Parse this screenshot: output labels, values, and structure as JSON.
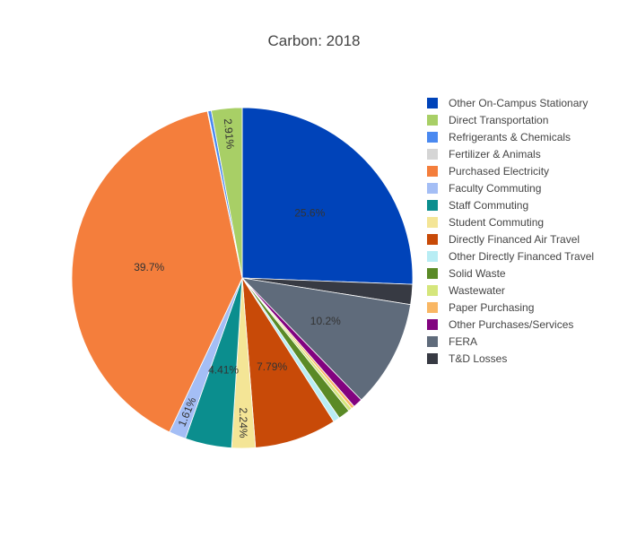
{
  "chart_data": {
    "type": "pie",
    "title": "Carbon: 2018",
    "direction": "clockwise",
    "legend_position": "right",
    "series": [
      {
        "name": "Other On-Campus Stationary",
        "value": 25.6,
        "label": "25.6%",
        "color": "#0043b9"
      },
      {
        "name": "T&D Losses",
        "value": 1.9,
        "label": "",
        "color": "#373a43"
      },
      {
        "name": "FERA",
        "value": 10.2,
        "label": "10.2%",
        "color": "#5f6b7b"
      },
      {
        "name": "Other Purchases/Services",
        "value": 0.9,
        "label": "",
        "color": "#82037f"
      },
      {
        "name": "Paper Purchasing",
        "value": 0.3,
        "label": "",
        "color": "#f9b764"
      },
      {
        "name": "Wastewater",
        "value": 0.35,
        "label": "",
        "color": "#d5e67c"
      },
      {
        "name": "Solid Waste",
        "value": 1.1,
        "label": "",
        "color": "#5a8a26"
      },
      {
        "name": "Other Directly Financed Travel",
        "value": 0.62,
        "label": "",
        "color": "#b8edf4"
      },
      {
        "name": "Directly Financed Air Travel",
        "value": 7.79,
        "label": "7.79%",
        "color": "#c84a08"
      },
      {
        "name": "Student Commuting",
        "value": 2.24,
        "label": "2.24%",
        "color": "#f4e596"
      },
      {
        "name": "Staff Commuting",
        "value": 4.41,
        "label": "4.41%",
        "color": "#0b8e8e"
      },
      {
        "name": "Faculty Commuting",
        "value": 1.61,
        "label": "1.61%",
        "color": "#a4bef5"
      },
      {
        "name": "Purchased Electricity",
        "value": 39.7,
        "label": "39.7%",
        "color": "#f47e3c"
      },
      {
        "name": "Fertilizer & Animals",
        "value": 0.05,
        "label": "",
        "color": "#d5d5d5"
      },
      {
        "name": "Refrigerants & Chemicals",
        "value": 0.32,
        "label": "",
        "color": "#4a89f0"
      },
      {
        "name": "Direct Transportation",
        "value": 2.91,
        "label": "2.91%",
        "color": "#a8cf66"
      }
    ],
    "legend_order": [
      "Other On-Campus Stationary",
      "Direct Transportation",
      "Refrigerants & Chemicals",
      "Fertilizer & Animals",
      "Purchased Electricity",
      "Faculty Commuting",
      "Staff Commuting",
      "Student Commuting",
      "Directly Financed Air Travel",
      "Other Directly Financed Travel",
      "Solid Waste",
      "Wastewater",
      "Paper Purchasing",
      "Other Purchases/Services",
      "FERA",
      "T&D Losses"
    ]
  }
}
